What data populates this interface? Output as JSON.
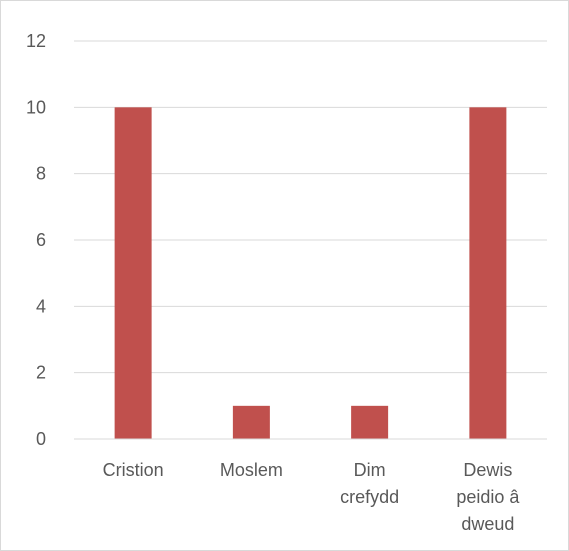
{
  "chart_data": {
    "type": "bar",
    "title": "",
    "xlabel": "",
    "ylabel": "",
    "categories": [
      [
        "Cristion"
      ],
      [
        "Moslem"
      ],
      [
        "Dim",
        "crefydd"
      ],
      [
        "Dewis",
        "peidio â",
        "dweud"
      ]
    ],
    "values": [
      10,
      1,
      1,
      10
    ],
    "ylim": [
      0,
      12
    ],
    "yticks": [
      0,
      2,
      4,
      6,
      8,
      10,
      12
    ],
    "grid": true,
    "legend": "none",
    "colors": {
      "bar": "#c0504d",
      "grid": "#d9d9d9",
      "text": "#595959",
      "frame": "#d9d9d9"
    }
  }
}
